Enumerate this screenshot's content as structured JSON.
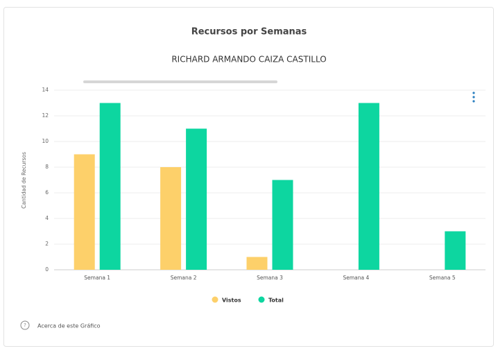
{
  "chart_data": {
    "type": "bar",
    "title": "Recursos por Semanas",
    "subtitle": "RICHARD ARMANDO CAIZA CASTILLO",
    "y_label": "Cantidad de Recursos",
    "categories": [
      "Semana 1",
      "Semana 2",
      "Semana 3",
      "Semana 4",
      "Semana 5"
    ],
    "series": [
      {
        "name": "Vistos",
        "color": "#fdd06a",
        "values": [
          9,
          8,
          1,
          0,
          0
        ]
      },
      {
        "name": "Total",
        "color": "#0dd6a0",
        "values": [
          13,
          11,
          7,
          13,
          3
        ]
      }
    ],
    "ylim": [
      0,
      14
    ],
    "yticks": [
      0,
      2,
      4,
      6,
      8,
      10,
      12,
      14
    ],
    "grid": true,
    "legend": "bottom"
  },
  "footer": "Acerca de este Gráfico"
}
